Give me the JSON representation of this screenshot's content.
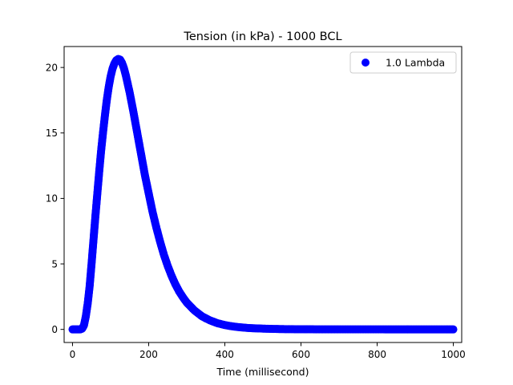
{
  "chart_data": {
    "type": "scatter",
    "title": "Tension (in kPa) - 1000 BCL",
    "xlabel": "Time (millisecond)",
    "ylabel": "",
    "xlim": [
      -22,
      1022
    ],
    "ylim": [
      -1.0,
      21.6
    ],
    "xticks": [
      0,
      200,
      400,
      600,
      800,
      1000
    ],
    "yticks": [
      0,
      5,
      10,
      15,
      20
    ],
    "legend_position": "top-right",
    "grid": false,
    "series": [
      {
        "name": "1.0 Lambda",
        "color": "#0000ff",
        "x": [
          0,
          10,
          20,
          25,
          30,
          35,
          40,
          45,
          50,
          55,
          60,
          65,
          70,
          75,
          80,
          85,
          90,
          95,
          100,
          105,
          110,
          115,
          120,
          125,
          130,
          135,
          140,
          150,
          160,
          170,
          180,
          190,
          200,
          210,
          220,
          230,
          240,
          250,
          260,
          270,
          280,
          290,
          300,
          320,
          340,
          360,
          380,
          400,
          420,
          440,
          460,
          480,
          500,
          520,
          540,
          560,
          580,
          600,
          620,
          640,
          660,
          680,
          700,
          740,
          780,
          820,
          860,
          900,
          940,
          980,
          1000
        ],
        "y": [
          0,
          0,
          0,
          0.05,
          0.3,
          1.0,
          2.0,
          3.3,
          5.0,
          6.8,
          8.6,
          10.3,
          12.0,
          13.6,
          15.0,
          16.3,
          17.5,
          18.5,
          19.3,
          19.9,
          20.3,
          20.55,
          20.65,
          20.6,
          20.35,
          19.95,
          19.4,
          18.1,
          16.6,
          15.0,
          13.4,
          11.8,
          10.4,
          9.0,
          7.8,
          6.7,
          5.7,
          4.85,
          4.1,
          3.45,
          2.9,
          2.45,
          2.05,
          1.45,
          1.0,
          0.7,
          0.48,
          0.33,
          0.23,
          0.16,
          0.11,
          0.08,
          0.06,
          0.04,
          0.03,
          0.02,
          0.015,
          0.01,
          0.008,
          0.006,
          0.005,
          0.004,
          0.003,
          0.002,
          0.002,
          0.001,
          0.001,
          0.001,
          0.001,
          0.001,
          0.001
        ]
      }
    ]
  }
}
